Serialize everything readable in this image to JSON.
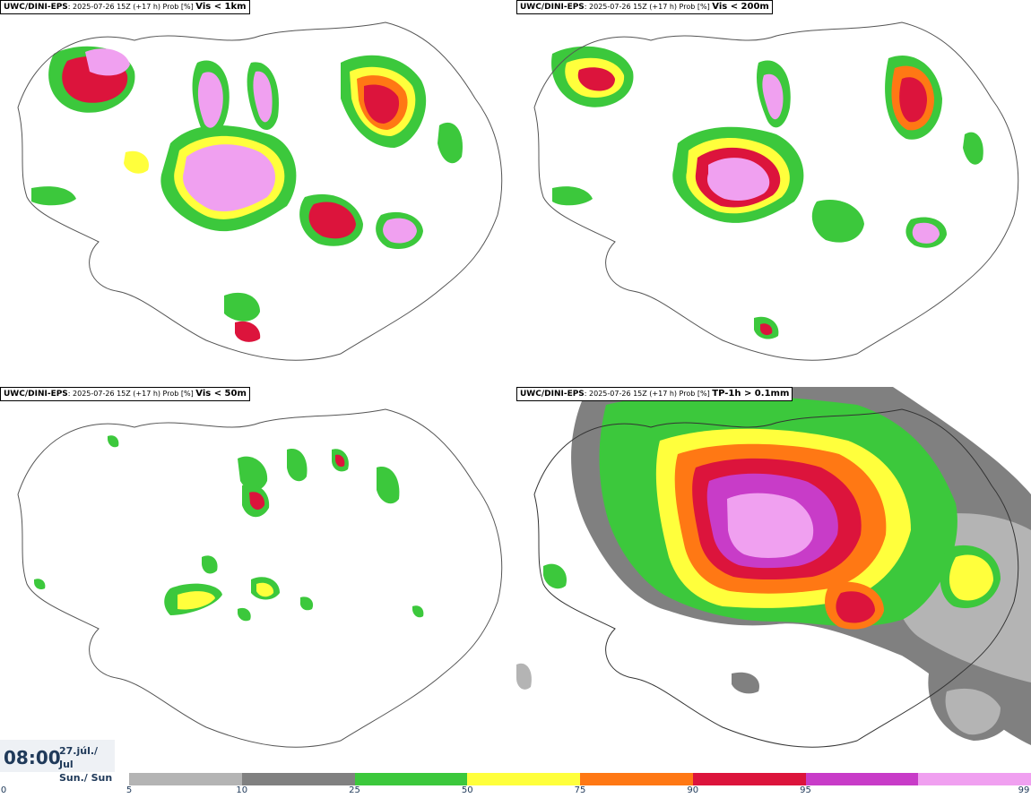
{
  "panels": [
    {
      "model": "UWC/DINI-EPS",
      "meta": ": 2025-07-26 15Z (+17 h) Prob [%] ",
      "threshold": "Vis < 1km"
    },
    {
      "model": "UWC/DINI-EPS",
      "meta": ": 2025-07-26 15Z (+17 h) Prob [%] ",
      "threshold": "Vis < 200m"
    },
    {
      "model": "UWC/DINI-EPS",
      "meta": ": 2025-07-26 15Z (+17 h) Prob [%] ",
      "threshold": "Vis < 50m"
    },
    {
      "model": "UWC/DINI-EPS",
      "meta": ": 2025-07-26 15Z (+17 h) Prob [%] ",
      "threshold": "TP-1h > 0.1mm"
    }
  ],
  "time": "08:00",
  "date_line1": "27.júl./ Jul",
  "date_line2": "Sun./ Sun",
  "legend": {
    "ticks": [
      "0",
      "5",
      "10",
      "25",
      "50",
      "75",
      "90",
      "95",
      "99"
    ],
    "colors": [
      "#b4b4b4",
      "#808080",
      "#3cc83c",
      "#ffff3c",
      "#ff7814",
      "#dc143c",
      "#c83cc8",
      "#f0a0f0"
    ]
  }
}
